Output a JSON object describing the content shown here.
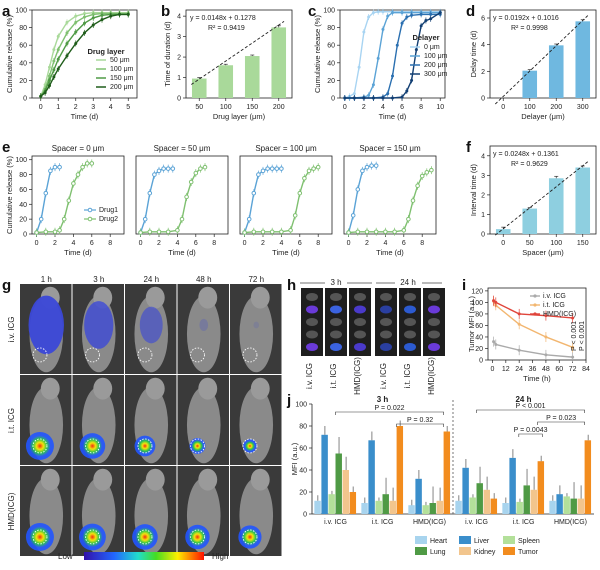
{
  "panels": {
    "a": {
      "label": "a",
      "chart_data": {
        "type": "line",
        "xlabel": "Time (d)",
        "ylabel": "Cumulative release (%)",
        "xlim": [
          -0.5,
          5.5
        ],
        "ylim": [
          0,
          100
        ],
        "xticks": [
          0,
          1,
          2,
          3,
          4,
          5
        ],
        "yticks": [
          0,
          20,
          40,
          60,
          80,
          100
        ],
        "legend_title": "Drug layer",
        "series": [
          {
            "name": "50 μm",
            "color": "#a9d99a",
            "x": [
              0,
              0.25,
              0.5,
              0.75,
              1,
              1.5,
              2,
              2.5,
              3,
              3.5,
              4,
              4.5,
              5
            ],
            "y": [
              2,
              15,
              35,
              55,
              70,
              86,
              93,
              96,
              97,
              97,
              97,
              97,
              97
            ]
          },
          {
            "name": "100 μm",
            "color": "#7fc070",
            "x": [
              0,
              0.25,
              0.5,
              0.75,
              1,
              1.5,
              2,
              2.5,
              3,
              3.5,
              4,
              4.5,
              5
            ],
            "y": [
              2,
              10,
              25,
              42,
              55,
              74,
              86,
              92,
              95,
              96,
              96,
              96,
              96
            ]
          },
          {
            "name": "150 μm",
            "color": "#4f9a45",
            "x": [
              0,
              0.25,
              0.5,
              0.75,
              1,
              1.5,
              2,
              2.5,
              3,
              3.5,
              4,
              4.5,
              5
            ],
            "y": [
              2,
              8,
              20,
              32,
              44,
              62,
              75,
              85,
              91,
              94,
              95,
              95,
              95
            ]
          },
          {
            "name": "200 μm",
            "color": "#1f5d1a",
            "x": [
              0,
              0.25,
              0.5,
              0.75,
              1,
              1.5,
              2,
              2.5,
              3,
              3.5,
              4,
              4.5,
              5
            ],
            "y": [
              2,
              6,
              14,
              24,
              33,
              48,
              62,
              74,
              83,
              89,
              93,
              95,
              95
            ]
          }
        ]
      }
    },
    "b": {
      "label": "b",
      "chart_data": {
        "type": "bar",
        "xlabel": "Drug layer (μm)",
        "ylabel": "Time of duration (d)",
        "categories": [
          "50",
          "100",
          "150",
          "200"
        ],
        "values": [
          0.95,
          1.6,
          2.05,
          3.45
        ],
        "errors": [
          0.05,
          0.05,
          0.05,
          0.08
        ],
        "ylim": [
          0,
          4.3
        ],
        "yticks": [
          0,
          1,
          2,
          3,
          4
        ],
        "bar_color": "#a9d99a",
        "equation": "y = 0.0148x + 0.1278",
        "r2": "R² = 0.9419"
      }
    },
    "c": {
      "label": "c",
      "chart_data": {
        "type": "line",
        "xlabel": "Time (d)",
        "ylabel": "Cumulative release (%)",
        "xlim": [
          -0.5,
          10.5
        ],
        "ylim": [
          0,
          100
        ],
        "xticks": [
          0,
          2,
          4,
          6,
          8,
          10
        ],
        "yticks": [
          0,
          20,
          40,
          60,
          80,
          100
        ],
        "legend_title": "Delayer",
        "series": [
          {
            "name": "0 μm",
            "color": "#a8d4f2",
            "x": [
              0,
              0.5,
              1,
              1.5,
              2,
              2.5,
              3,
              3.5,
              4,
              5,
              6,
              7,
              8,
              9,
              10
            ],
            "y": [
              0,
              2,
              5,
              35,
              75,
              92,
              97,
              98,
              98,
              98,
              98,
              98,
              98,
              98,
              98
            ]
          },
          {
            "name": "100 μm",
            "color": "#5ba3d6",
            "x": [
              0,
              0.5,
              1,
              2,
              2.5,
              3,
              3.5,
              4,
              4.5,
              5,
              6,
              7,
              8,
              9,
              10
            ],
            "y": [
              0,
              0,
              0,
              1,
              3,
              15,
              45,
              78,
              93,
              97,
              97,
              97,
              97,
              97,
              97
            ]
          },
          {
            "name": "200 μm",
            "color": "#2a6fb0",
            "x": [
              0,
              1,
              2,
              3,
              4,
              4.5,
              5,
              5.5,
              6,
              6.5,
              7,
              8,
              9,
              10
            ],
            "y": [
              0,
              0,
              0,
              0,
              1,
              5,
              25,
              60,
              85,
              92,
              94,
              95,
              95,
              95
            ]
          },
          {
            "name": "300 μm",
            "color": "#123f73",
            "x": [
              0,
              1,
              2,
              3,
              4,
              5,
              6,
              6.5,
              7,
              7.5,
              8,
              8.5,
              9,
              10
            ],
            "y": [
              0,
              0,
              0,
              0,
              0,
              0,
              1,
              8,
              20,
              55,
              82,
              88,
              90,
              97
            ]
          }
        ]
      }
    },
    "d": {
      "label": "d",
      "chart_data": {
        "type": "bar",
        "xlabel": "Delayer (μm)",
        "ylabel": "Delay time (d)",
        "categories": [
          "0",
          "100",
          "200",
          "300"
        ],
        "values": [
          0,
          2.05,
          3.95,
          5.75
        ],
        "errors": [
          0,
          0.08,
          0.1,
          0.12
        ],
        "ylim": [
          0,
          6.6
        ],
        "yticks": [
          0,
          2,
          4,
          6
        ],
        "bar_color": "#6fb8e0",
        "equation": "y = 0.0192x + 0.1016",
        "r2": "R² = 0.9998"
      }
    },
    "e": {
      "label": "e",
      "ylabel": "Cumulative release (%)",
      "xlabel": "Time (d)",
      "legend": [
        {
          "name": "Drug1",
          "color": "#5ba3d6"
        },
        {
          "name": "Drug2",
          "color": "#7fc070"
        }
      ],
      "subplots": [
        {
          "title": "Spacer = 0 μm",
          "drug1": {
            "x": [
              0,
              0.5,
              1,
              1.5,
              2,
              2.5
            ],
            "y": [
              2,
              20,
              55,
              85,
              90,
              90
            ]
          },
          "drug2": {
            "x": [
              0,
              1,
              2,
              2.5,
              3,
              3.5,
              4,
              4.5,
              5,
              5.5,
              6
            ],
            "y": [
              2,
              3,
              3,
              5,
              20,
              45,
              68,
              80,
              90,
              95,
              95
            ]
          }
        },
        {
          "title": "Spacer = 50 μm",
          "drug1": {
            "x": [
              0,
              0.5,
              1,
              1.5,
              2,
              2.5,
              3,
              3.5
            ],
            "y": [
              2,
              20,
              55,
              80,
              85,
              88,
              88,
              88
            ]
          },
          "drug2": {
            "x": [
              0,
              1,
              2,
              3,
              4,
              4.5,
              5,
              5.5,
              6,
              6.5,
              7
            ],
            "y": [
              2,
              3,
              3,
              3,
              5,
              20,
              50,
              70,
              82,
              88,
              90
            ]
          }
        },
        {
          "title": "Spacer = 100 μm",
          "drug1": {
            "x": [
              0,
              0.5,
              1,
              1.5,
              2,
              2.5,
              3,
              3.5,
              4
            ],
            "y": [
              2,
              20,
              55,
              80,
              85,
              88,
              88,
              88,
              88
            ]
          },
          "drug2": {
            "x": [
              0,
              1,
              2,
              3,
              4,
              5,
              5.5,
              6,
              6.5,
              7,
              7.5,
              8
            ],
            "y": [
              2,
              3,
              3,
              3,
              3,
              5,
              25,
              55,
              75,
              85,
              88,
              90
            ]
          }
        },
        {
          "title": "Spacer = 150 μm",
          "drug1": {
            "x": [
              0,
              0.5,
              1,
              1.5,
              2,
              2.5,
              3
            ],
            "y": [
              2,
              25,
              60,
              85,
              90,
              92,
              92
            ]
          },
          "drug2": {
            "x": [
              0,
              1,
              2,
              3,
              4,
              5,
              6,
              6.5,
              7,
              7.5,
              8,
              8.5,
              9
            ],
            "y": [
              2,
              3,
              3,
              3,
              3,
              3,
              5,
              20,
              45,
              65,
              78,
              83,
              86
            ]
          }
        }
      ],
      "xticks": [
        0,
        2,
        4,
        6,
        8
      ],
      "yticks": [
        0,
        20,
        40,
        60,
        80,
        100
      ],
      "xlim": [
        -0.5,
        9.5
      ],
      "ylim": [
        0,
        105
      ]
    },
    "f": {
      "label": "f",
      "chart_data": {
        "type": "bar",
        "xlabel": "Spacer (μm)",
        "ylabel": "Interval time (d)",
        "categories": [
          "0",
          "50",
          "100",
          "150"
        ],
        "values": [
          0.25,
          1.3,
          2.85,
          3.4
        ],
        "errors": [
          0.1,
          0.05,
          0.1,
          0.08
        ],
        "ylim": [
          0,
          4.5
        ],
        "yticks": [
          0,
          1,
          2,
          3,
          4
        ],
        "bar_color": "#8ecfe0",
        "equation": "y = 0.0248x + 0.1361",
        "r2": "R² = 0.9629"
      }
    },
    "g": {
      "label": "g",
      "time_labels": [
        "1 h",
        "3 h",
        "24 h",
        "48 h",
        "72 h"
      ],
      "row_labels": [
        "i.v. ICG",
        "i.t. ICG",
        "HMD(ICG)"
      ],
      "colorbar_low": "Low",
      "colorbar_high": "High"
    },
    "h": {
      "label": "h",
      "time_labels": [
        "3 h",
        "24 h"
      ],
      "group_labels": [
        "i.v. ICG",
        "i.t. ICG",
        "HMD(ICG)",
        "i.v. ICG",
        "i.t. ICG",
        "HMD(ICG)"
      ]
    },
    "i": {
      "label": "i",
      "chart_data": {
        "type": "line",
        "xlabel": "Time (h)",
        "ylabel": "Tumor MFI (a.u.)",
        "xlim": [
          -4,
          84
        ],
        "ylim": [
          0,
          125
        ],
        "xticks": [
          0,
          12,
          24,
          36,
          48,
          60,
          72,
          84
        ],
        "yticks": [
          0,
          20,
          40,
          60,
          80,
          100,
          120
        ],
        "series": [
          {
            "name": "i.v. ICG",
            "color": "#aaaaaa",
            "x": [
              1,
              3,
              24,
              48,
              72
            ],
            "y": [
              32,
              27,
              17,
              9,
              5
            ]
          },
          {
            "name": "i.t. ICG",
            "color": "#f2b670",
            "x": [
              1,
              3,
              24,
              48,
              72
            ],
            "y": [
              102,
              95,
              62,
              40,
              22
            ]
          },
          {
            "name": "HMD(ICG)",
            "color": "#e0453b",
            "x": [
              1,
              3,
              24,
              48,
              72
            ],
            "y": [
              103,
              100,
              80,
              77,
              73
            ]
          }
        ],
        "annotations": [
          "P < 0.001",
          "P < 0.001"
        ]
      }
    },
    "j": {
      "label": "j",
      "chart_data": {
        "type": "bar",
        "ylabel": "MFI (a.u.)",
        "ylim": [
          0,
          100
        ],
        "yticks": [
          0,
          20,
          40,
          60,
          80,
          100
        ],
        "organs": [
          "Heart",
          "Liver",
          "Spleen",
          "Lung",
          "Kidney",
          "Tumor"
        ],
        "organ_colors": [
          "#a8d4ee",
          "#3a8ecb",
          "#b3e09a",
          "#4f9a45",
          "#f2c58d",
          "#f28c1e"
        ],
        "groups": [
          {
            "time": "3 h",
            "group": "i.v. ICG",
            "values": [
              12,
              72,
              18,
              55,
              40,
              20
            ]
          },
          {
            "time": "3 h",
            "group": "i.t. ICG",
            "values": [
              10,
              67,
              12,
              18,
              12,
              80
            ]
          },
          {
            "time": "3 h",
            "group": "HMD(ICG)",
            "values": [
              8,
              32,
              8,
              10,
              12,
              75
            ]
          },
          {
            "time": "24 h",
            "group": "i.v. ICG",
            "values": [
              12,
              42,
              15,
              28,
              22,
              14
            ]
          },
          {
            "time": "24 h",
            "group": "i.t. ICG",
            "values": [
              10,
              51,
              11,
              26,
              22,
              48
            ]
          },
          {
            "time": "24 h",
            "group": "HMD(ICG)",
            "values": [
              12,
              18,
              16,
              14,
              14,
              67
            ]
          }
        ],
        "errors": [
          5,
          8,
          3,
          15,
          12,
          5
        ],
        "section_titles": [
          "3 h",
          "24 h"
        ],
        "group_labels": [
          "i.v. ICG",
          "i.t. ICG",
          "HMD(ICG)",
          "i.v. ICG",
          "i.t. ICG",
          "HMD(ICG)"
        ],
        "annotations": [
          {
            "text": "P = 0.022",
            "section": 0
          },
          {
            "text": "P = 0.32",
            "section": 0
          },
          {
            "text": "P < 0.001",
            "section": 1
          },
          {
            "text": "P = 0.023",
            "section": 1
          },
          {
            "text": "P = 0.0043",
            "section": 1
          }
        ]
      }
    }
  }
}
